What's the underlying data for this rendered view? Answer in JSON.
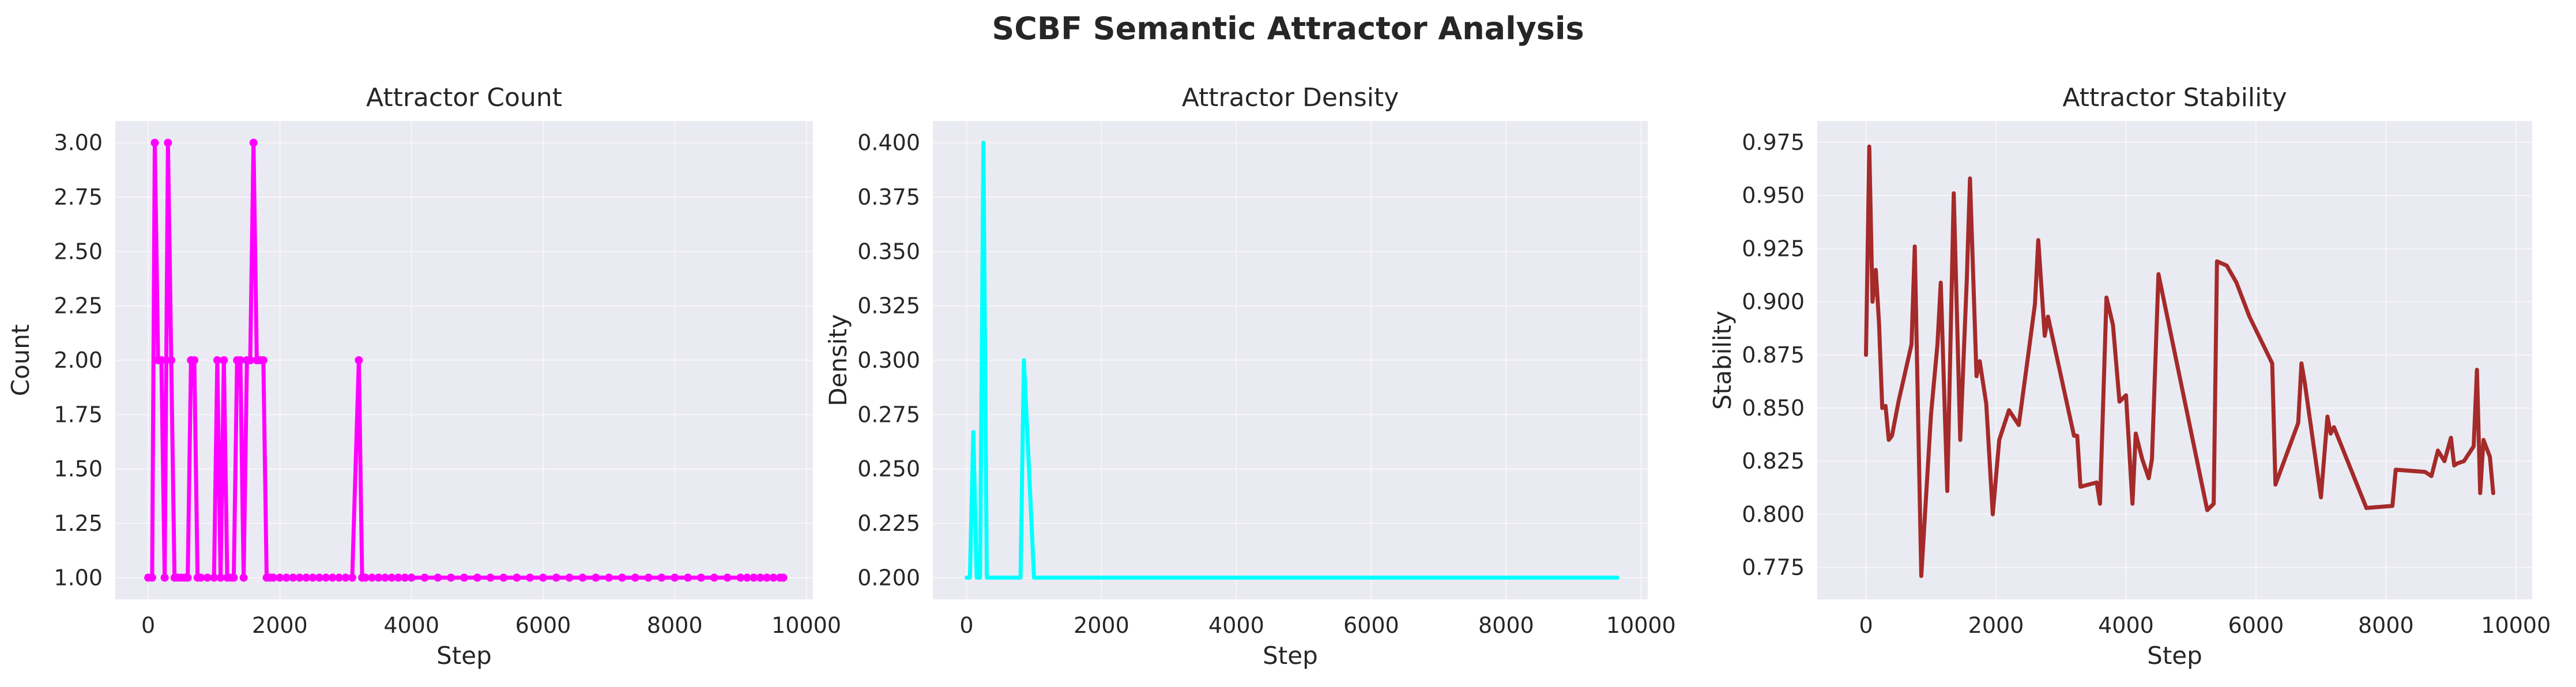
{
  "figure": {
    "title": "SCBF Semantic Attractor Analysis",
    "background": "#ffffff",
    "axes_face": "#eaeaf2",
    "grid_color": "#ffffff",
    "text_color": "#262626"
  },
  "chart_data": [
    {
      "type": "line",
      "title": "Attractor Count",
      "xlabel": "Step",
      "ylabel": "Count",
      "xlim": [
        -500,
        10100
      ],
      "ylim": [
        0.9,
        3.1
      ],
      "xticks": [
        0,
        2000,
        4000,
        6000,
        8000,
        10000
      ],
      "xtick_labels": [
        "0",
        "2000",
        "4000",
        "6000",
        "8000",
        "10000"
      ],
      "yticks": [
        1.0,
        1.25,
        1.5,
        1.75,
        2.0,
        2.25,
        2.5,
        2.75,
        3.0
      ],
      "ytick_labels": [
        "1.00",
        "1.25",
        "1.50",
        "1.75",
        "2.00",
        "2.25",
        "2.50",
        "2.75",
        "3.00"
      ],
      "grid": true,
      "series": [
        {
          "color": "#ff00ff",
          "markers": true,
          "x": [
            0,
            60,
            100,
            150,
            200,
            250,
            300,
            350,
            400,
            450,
            500,
            550,
            600,
            650,
            700,
            750,
            800,
            900,
            1000,
            1050,
            1100,
            1150,
            1200,
            1250,
            1300,
            1350,
            1400,
            1450,
            1500,
            1550,
            1600,
            1650,
            1700,
            1750,
            1800,
            1850,
            1900,
            2000,
            2100,
            2200,
            2300,
            2400,
            2500,
            2600,
            2700,
            2800,
            2900,
            3000,
            3100,
            3200,
            3250,
            3300,
            3400,
            3500,
            3600,
            3700,
            3800,
            3900,
            4000,
            4200,
            4400,
            4600,
            4800,
            5000,
            5200,
            5400,
            5600,
            5800,
            6000,
            6200,
            6400,
            6600,
            6800,
            7000,
            7200,
            7400,
            7600,
            7800,
            8000,
            8200,
            8400,
            8600,
            8800,
            9000,
            9100,
            9200,
            9300,
            9400,
            9500,
            9600,
            9650
          ],
          "y": [
            1,
            1,
            3,
            2,
            2,
            1,
            3,
            2,
            1,
            1,
            1,
            1,
            1,
            2,
            2,
            1,
            1,
            1,
            1,
            2,
            1,
            2,
            1,
            1,
            1,
            2,
            2,
            1,
            2,
            2,
            3,
            2,
            2,
            2,
            1,
            1,
            1,
            1,
            1,
            1,
            1,
            1,
            1,
            1,
            1,
            1,
            1,
            1,
            1,
            2,
            1,
            1,
            1,
            1,
            1,
            1,
            1,
            1,
            1,
            1,
            1,
            1,
            1,
            1,
            1,
            1,
            1,
            1,
            1,
            1,
            1,
            1,
            1,
            1,
            1,
            1,
            1,
            1,
            1,
            1,
            1,
            1,
            1,
            1,
            1,
            1,
            1,
            1,
            1,
            1,
            1
          ]
        }
      ]
    },
    {
      "type": "line",
      "title": "Attractor Density",
      "xlabel": "Step",
      "ylabel": "Density",
      "xlim": [
        -500,
        10100
      ],
      "ylim": [
        0.19,
        0.41
      ],
      "xticks": [
        0,
        2000,
        4000,
        6000,
        8000,
        10000
      ],
      "xtick_labels": [
        "0",
        "2000",
        "4000",
        "6000",
        "8000",
        "10000"
      ],
      "yticks": [
        0.2,
        0.225,
        0.25,
        0.275,
        0.3,
        0.325,
        0.35,
        0.375,
        0.4
      ],
      "ytick_labels": [
        "0.200",
        "0.225",
        "0.250",
        "0.275",
        "0.300",
        "0.325",
        "0.350",
        "0.375",
        "0.400"
      ],
      "grid": true,
      "series": [
        {
          "color": "#00ffff",
          "markers": false,
          "x": [
            0,
            50,
            100,
            150,
            200,
            250,
            300,
            350,
            800,
            850,
            900,
            1000,
            1050,
            2000,
            4000,
            6000,
            8000,
            9650
          ],
          "y": [
            0.2,
            0.2,
            0.267,
            0.2,
            0.2,
            0.4,
            0.2,
            0.2,
            0.2,
            0.3,
            0.267,
            0.2,
            0.2,
            0.2,
            0.2,
            0.2,
            0.2,
            0.2
          ]
        }
      ]
    },
    {
      "type": "line",
      "title": "Attractor Stability",
      "xlabel": "Step",
      "ylabel": "Stability",
      "xlim": [
        -750,
        10250
      ],
      "ylim": [
        0.76,
        0.985
      ],
      "xticks": [
        0,
        2000,
        4000,
        6000,
        8000,
        10000
      ],
      "xtick_labels": [
        "0",
        "2000",
        "4000",
        "6000",
        "8000",
        "10000"
      ],
      "yticks": [
        0.775,
        0.8,
        0.825,
        0.85,
        0.875,
        0.9,
        0.925,
        0.95,
        0.975
      ],
      "ytick_labels": [
        "0.775",
        "0.800",
        "0.825",
        "0.850",
        "0.875",
        "0.900",
        "0.925",
        "0.950",
        "0.975"
      ],
      "grid": true,
      "series": [
        {
          "color": "#a52a2a",
          "markers": false,
          "x": [
            0,
            50,
            100,
            150,
            200,
            250,
            300,
            350,
            400,
            500,
            700,
            750,
            850,
            1000,
            1100,
            1150,
            1250,
            1350,
            1450,
            1550,
            1600,
            1700,
            1750,
            1850,
            1950,
            2050,
            2200,
            2350,
            2500,
            2600,
            2650,
            2750,
            2800,
            3200,
            3250,
            3300,
            3550,
            3600,
            3700,
            3800,
            3900,
            4000,
            4100,
            4150,
            4250,
            4350,
            4400,
            4500,
            5250,
            5350,
            5400,
            5550,
            5700,
            5900,
            6250,
            6300,
            6650,
            6700,
            6750,
            7000,
            7100,
            7150,
            7200,
            7700,
            8100,
            8150,
            8600,
            8700,
            8800,
            8900,
            9000,
            9050,
            9100,
            9200,
            9350,
            9400,
            9450,
            9500,
            9600,
            9650
          ],
          "y": [
            0.875,
            0.973,
            0.9,
            0.915,
            0.89,
            0.85,
            0.851,
            0.835,
            0.837,
            0.853,
            0.88,
            0.926,
            0.771,
            0.847,
            0.88,
            0.909,
            0.811,
            0.951,
            0.835,
            0.91,
            0.958,
            0.865,
            0.872,
            0.852,
            0.8,
            0.835,
            0.849,
            0.842,
            0.876,
            0.899,
            0.929,
            0.884,
            0.893,
            0.837,
            0.837,
            0.813,
            0.815,
            0.805,
            0.902,
            0.889,
            0.853,
            0.856,
            0.805,
            0.838,
            0.826,
            0.817,
            0.826,
            0.913,
            0.802,
            0.805,
            0.919,
            0.917,
            0.909,
            0.893,
            0.871,
            0.814,
            0.843,
            0.871,
            0.862,
            0.808,
            0.846,
            0.838,
            0.841,
            0.803,
            0.804,
            0.821,
            0.82,
            0.818,
            0.83,
            0.825,
            0.836,
            0.823,
            0.824,
            0.825,
            0.832,
            0.868,
            0.81,
            0.835,
            0.827,
            0.81
          ]
        }
      ]
    }
  ]
}
